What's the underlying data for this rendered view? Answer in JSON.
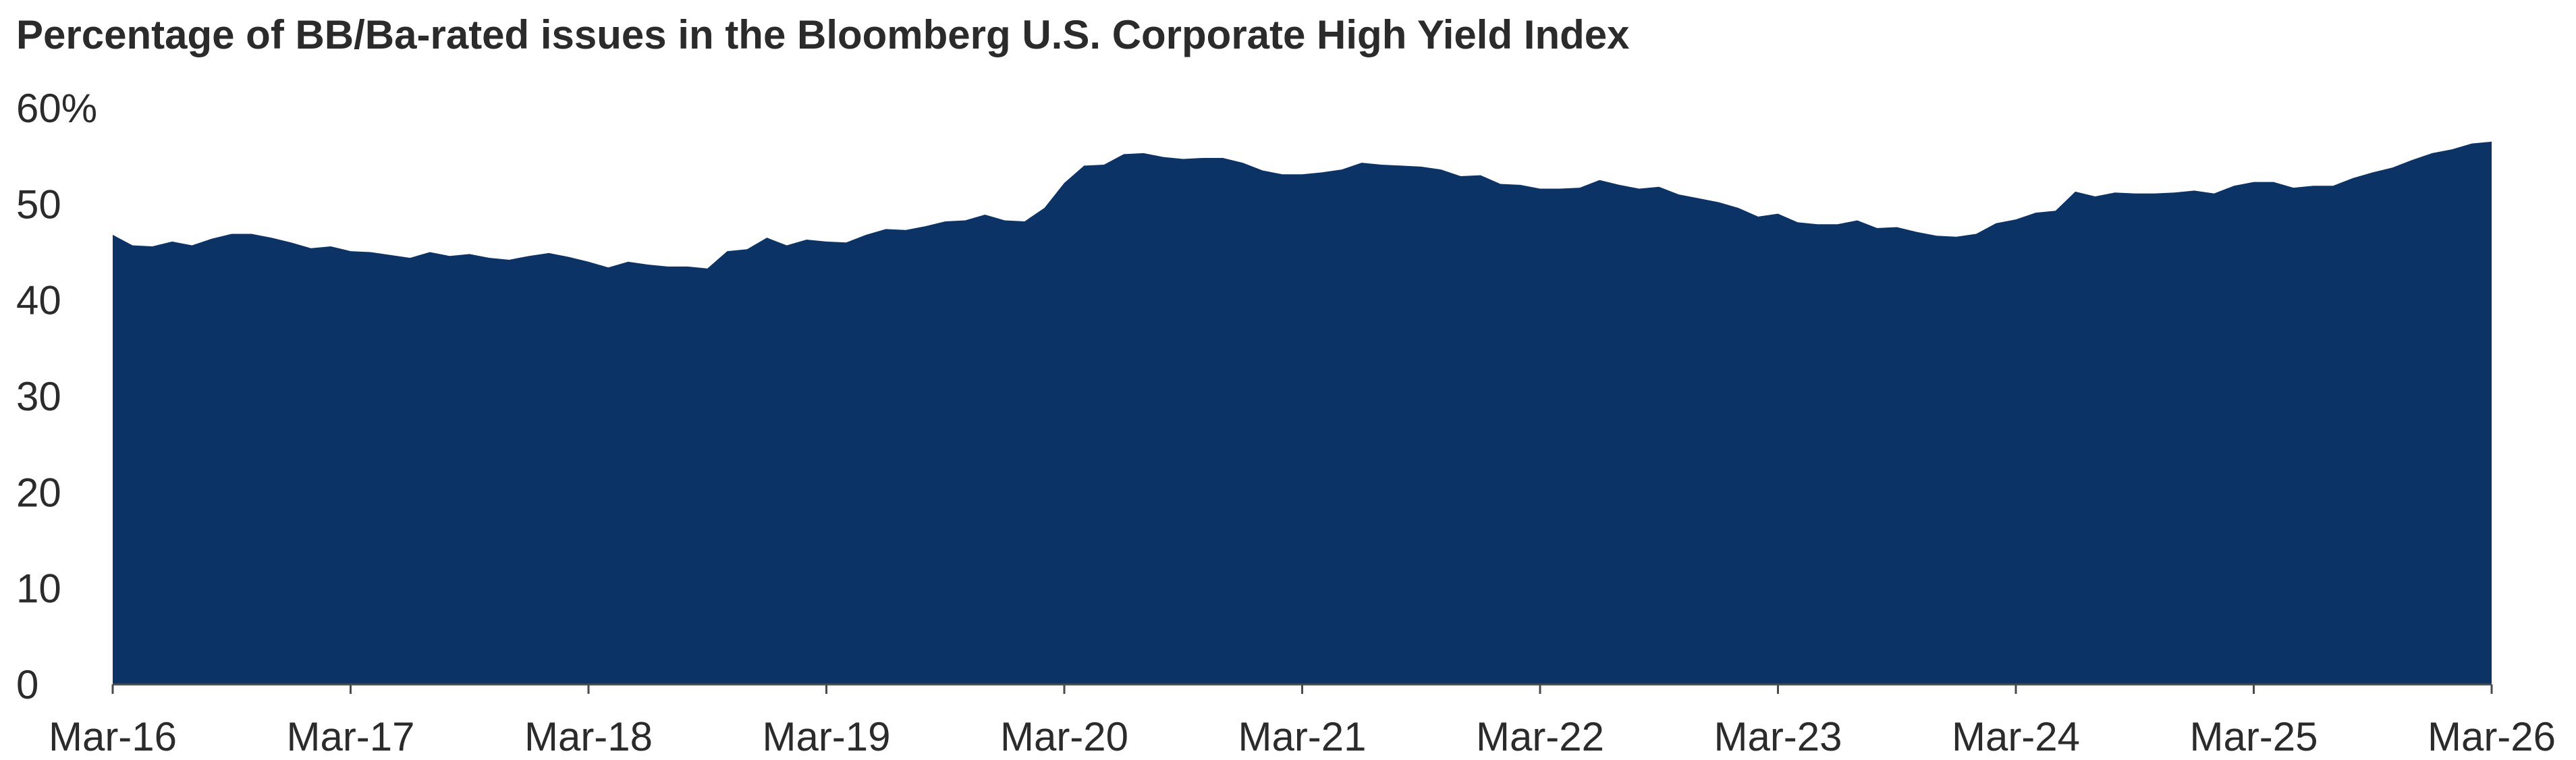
{
  "chart_data": {
    "type": "area",
    "title": "Percentage of BB/Ba-rated issues in the Bloomberg U.S. Corporate High Yield Index",
    "xlabel": "",
    "ylabel": "",
    "y_unit_label": "60%",
    "ylim": [
      0,
      60
    ],
    "y_ticks": [
      "0",
      "10",
      "20",
      "30",
      "40",
      "50",
      "60%"
    ],
    "y_tick_values": [
      0,
      10,
      20,
      30,
      40,
      50,
      60
    ],
    "x_ticks": [
      "Mar-16",
      "Mar-17",
      "Mar-18",
      "Mar-19",
      "Mar-20",
      "Mar-21",
      "Mar-22",
      "Mar-23",
      "Mar-24",
      "Mar-25",
      "Mar-26"
    ],
    "x_range": [
      "Mar-16",
      "Mar-26"
    ],
    "grid": false,
    "legend": "none",
    "color": "#0b3366",
    "frequency": "monthly",
    "x_start": "Mar-16",
    "values": [
      46.8,
      45.7,
      45.6,
      46.1,
      45.7,
      46.4,
      46.9,
      46.9,
      46.5,
      46.0,
      45.4,
      45.6,
      45.1,
      45.0,
      44.7,
      44.4,
      45.0,
      44.6,
      44.8,
      44.4,
      44.2,
      44.6,
      44.9,
      44.5,
      44.0,
      43.4,
      44.0,
      43.7,
      43.5,
      43.5,
      43.3,
      45.1,
      45.3,
      46.5,
      45.7,
      46.3,
      46.1,
      46.0,
      46.8,
      47.4,
      47.3,
      47.7,
      48.2,
      48.3,
      48.9,
      48.3,
      48.2,
      49.6,
      52.2,
      54.0,
      54.1,
      55.2,
      55.3,
      54.9,
      54.7,
      54.8,
      54.8,
      54.3,
      53.5,
      53.1,
      53.1,
      53.3,
      53.6,
      54.3,
      54.1,
      54.0,
      53.9,
      53.6,
      52.9,
      53.0,
      52.1,
      52.0,
      51.6,
      51.6,
      51.7,
      52.5,
      52.0,
      51.6,
      51.8,
      51.0,
      50.6,
      50.2,
      49.6,
      48.7,
      49.0,
      48.1,
      47.9,
      47.9,
      48.3,
      47.5,
      47.6,
      47.1,
      46.7,
      46.6,
      46.9,
      48.0,
      48.4,
      49.1,
      49.3,
      51.3,
      50.8,
      51.2,
      51.1,
      51.1,
      51.2,
      51.4,
      51.1,
      51.9,
      52.3,
      52.3,
      51.7,
      51.9,
      51.9,
      52.7,
      53.3,
      53.8,
      54.6,
      55.3,
      55.7,
      56.3,
      56.5
    ]
  }
}
